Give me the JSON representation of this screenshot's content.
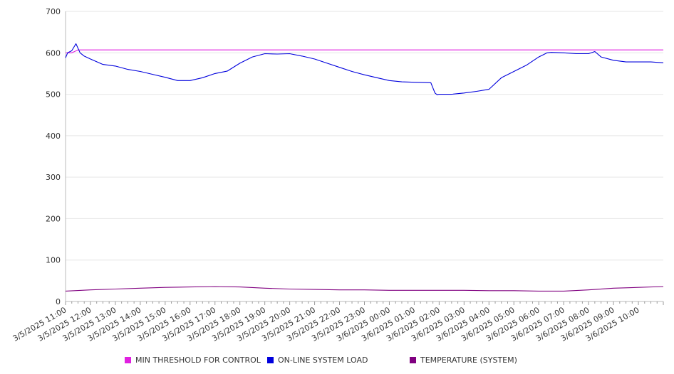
{
  "chart_data": {
    "type": "line",
    "title": "",
    "xlabel": "",
    "ylabel": "",
    "ylim": [
      0,
      700
    ],
    "yticks": [
      0,
      100,
      200,
      300,
      400,
      500,
      600,
      700
    ],
    "grid": true,
    "legend_position": "bottom",
    "x_tick_labels": [
      "3/5/2025 11:00",
      "3/5/2025 12:00",
      "3/5/2025 13:00",
      "3/5/2025 14:00",
      "3/5/2025 15:00",
      "3/5/2025 16:00",
      "3/5/2025 17:00",
      "3/5/2025 18:00",
      "3/5/2025 19:00",
      "3/5/2025 20:00",
      "3/5/2025 21:00",
      "3/5/2025 22:00",
      "3/5/2025 23:00",
      "3/6/2025 00:00",
      "3/6/2025 01:00",
      "3/6/2025 02:00",
      "3/6/2025 03:00",
      "3/6/2025 04:00",
      "3/6/2025 05:00",
      "3/6/2025 06:00",
      "3/6/2025 07:00",
      "3/6/2025 08:00",
      "3/6/2025 09:00",
      "3/6/2025 10:00"
    ],
    "series": [
      {
        "name": "MIN THRESHOLD FOR CONTROL",
        "color": "#e020e0",
        "x": [
          "3/5/2025 11:00",
          "3/5/2025 11:15",
          "3/5/2025 11:30",
          "3/6/2025 11:00"
        ],
        "values": [
          600,
          600,
          607,
          607
        ]
      },
      {
        "name": "ON-LINE SYSTEM LOAD",
        "color": "#0000dd",
        "x": [
          "3/5/2025 11:00",
          "3/5/2025 11:05",
          "3/5/2025 11:15",
          "3/5/2025 11:25",
          "3/5/2025 11:35",
          "3/5/2025 11:45",
          "3/5/2025 12:00",
          "3/5/2025 12:30",
          "3/5/2025 13:00",
          "3/5/2025 13:30",
          "3/5/2025 14:00",
          "3/5/2025 14:30",
          "3/5/2025 15:00",
          "3/5/2025 15:30",
          "3/5/2025 16:00",
          "3/5/2025 16:30",
          "3/5/2025 17:00",
          "3/5/2025 17:30",
          "3/5/2025 18:00",
          "3/5/2025 18:30",
          "3/5/2025 19:00",
          "3/5/2025 19:30",
          "3/5/2025 20:00",
          "3/5/2025 20:30",
          "3/5/2025 21:00",
          "3/5/2025 21:30",
          "3/5/2025 22:00",
          "3/5/2025 22:30",
          "3/5/2025 23:00",
          "3/5/2025 23:30",
          "3/6/2025 00:00",
          "3/6/2025 00:30",
          "3/6/2025 01:00",
          "3/6/2025 01:40",
          "3/6/2025 01:50",
          "3/6/2025 01:55",
          "3/6/2025 02:00",
          "3/6/2025 02:30",
          "3/6/2025 03:00",
          "3/6/2025 03:30",
          "3/6/2025 04:00",
          "3/6/2025 04:30",
          "3/6/2025 05:00",
          "3/6/2025 05:30",
          "3/6/2025 06:00",
          "3/6/2025 06:20",
          "3/6/2025 06:30",
          "3/6/2025 07:00",
          "3/6/2025 07:30",
          "3/6/2025 08:00",
          "3/6/2025 08:15",
          "3/6/2025 08:30",
          "3/6/2025 09:00",
          "3/6/2025 09:30",
          "3/6/2025 10:00",
          "3/6/2025 10:30",
          "3/6/2025 11:00"
        ],
        "values": [
          588,
          600,
          605,
          622,
          600,
          592,
          585,
          572,
          568,
          560,
          555,
          548,
          541,
          533,
          533,
          540,
          550,
          556,
          575,
          590,
          598,
          597,
          598,
          592,
          585,
          575,
          565,
          555,
          547,
          540,
          533,
          530,
          529,
          528,
          503,
          499,
          500,
          500,
          503,
          507,
          512,
          540,
          555,
          570,
          590,
          600,
          601,
          600,
          598,
          598,
          603,
          590,
          582,
          578,
          578,
          578,
          576
        ]
      },
      {
        "name": "TEMPERATURE (SYSTEM)",
        "color": "#800080",
        "x": [
          "3/5/2025 11:00",
          "3/5/2025 12:00",
          "3/5/2025 13:00",
          "3/5/2025 14:00",
          "3/5/2025 15:00",
          "3/5/2025 16:00",
          "3/5/2025 17:00",
          "3/5/2025 18:00",
          "3/5/2025 19:00",
          "3/5/2025 20:00",
          "3/5/2025 21:00",
          "3/5/2025 22:00",
          "3/5/2025 23:00",
          "3/6/2025 00:00",
          "3/6/2025 01:00",
          "3/6/2025 02:00",
          "3/6/2025 03:00",
          "3/6/2025 04:00",
          "3/6/2025 05:00",
          "3/6/2025 06:00",
          "3/6/2025 07:00",
          "3/6/2025 08:00",
          "3/6/2025 09:00",
          "3/6/2025 10:00",
          "3/6/2025 11:00"
        ],
        "values": [
          25,
          28,
          30,
          32,
          34,
          35,
          36,
          35,
          32,
          30,
          29,
          28,
          28,
          27,
          27,
          27,
          27,
          26,
          26,
          25,
          25,
          28,
          32,
          34,
          36
        ]
      }
    ]
  }
}
